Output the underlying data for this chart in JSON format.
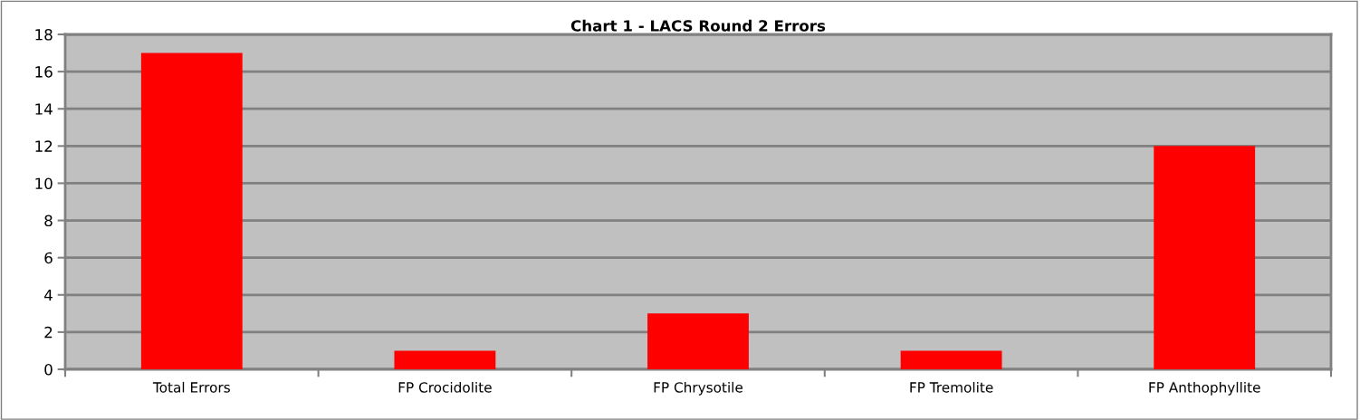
{
  "chart_data": {
    "type": "bar",
    "title": "Chart 1 - LACS Round 2 Errors",
    "categories": [
      "Total Errors",
      "FP Crocidolite",
      "FP Chrysotile",
      "FP Tremolite",
      "FP Anthophyllite"
    ],
    "values": [
      17,
      1,
      3,
      1,
      12
    ],
    "color": "#ff0000",
    "ylim": [
      0,
      18
    ],
    "yticks": [
      0,
      2,
      4,
      6,
      8,
      10,
      12,
      14,
      16,
      18
    ],
    "grid": "y",
    "legend": false
  }
}
